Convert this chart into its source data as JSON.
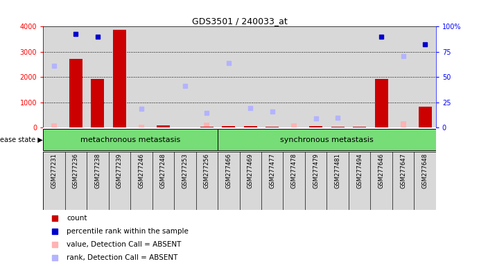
{
  "title": "GDS3501 / 240033_at",
  "samples": [
    "GSM277231",
    "GSM277236",
    "GSM277238",
    "GSM277239",
    "GSM277246",
    "GSM277248",
    "GSM277253",
    "GSM277256",
    "GSM277466",
    "GSM277469",
    "GSM277477",
    "GSM277478",
    "GSM277479",
    "GSM277481",
    "GSM277494",
    "GSM277646",
    "GSM277647",
    "GSM277648"
  ],
  "counts": [
    0,
    2730,
    1920,
    3880,
    0,
    80,
    0,
    0,
    0,
    0,
    0,
    0,
    0,
    0,
    0,
    1920,
    0,
    820
  ],
  "percentile_ranks_pct": [
    null,
    92.5,
    90.0,
    null,
    null,
    null,
    null,
    null,
    null,
    null,
    null,
    null,
    null,
    null,
    null,
    90.0,
    null,
    82.5
  ],
  "absent_values": [
    160,
    null,
    null,
    100,
    130,
    null,
    null,
    210,
    null,
    null,
    null,
    170,
    null,
    null,
    null,
    130,
    260,
    null
  ],
  "absent_ranks_pct": [
    61.0,
    null,
    null,
    null,
    18.75,
    null,
    41.0,
    14.5,
    63.75,
    19.5,
    16.25,
    null,
    9.25,
    9.5,
    null,
    null,
    70.5,
    null
  ],
  "small_counts": [
    null,
    null,
    null,
    null,
    null,
    null,
    20,
    40,
    50,
    60,
    30,
    null,
    50,
    40,
    40,
    null,
    null,
    null
  ],
  "group1_count": 8,
  "group2_count": 10,
  "group1_label": "metachronous metastasis",
  "group2_label": "synchronous metastasis",
  "disease_state_label": "disease state",
  "ylim_left": [
    0,
    4000
  ],
  "ylim_right": [
    0,
    100
  ],
  "yticks_left": [
    0,
    1000,
    2000,
    3000,
    4000
  ],
  "yticks_right": [
    0,
    25,
    50,
    75,
    100
  ],
  "bar_color": "#cc0000",
  "absent_bar_color": "#ffb3b3",
  "percentile_color": "#0000cc",
  "absent_rank_color": "#b3b3ff",
  "bg_color": "#d8d8d8",
  "group1_bg": "#77dd77",
  "group2_bg": "#77dd77",
  "legend_items": [
    {
      "label": "count",
      "color": "#cc0000"
    },
    {
      "label": "percentile rank within the sample",
      "color": "#0000cc"
    },
    {
      "label": "value, Detection Call = ABSENT",
      "color": "#ffb3b3"
    },
    {
      "label": "rank, Detection Call = ABSENT",
      "color": "#b3b3ff"
    }
  ]
}
